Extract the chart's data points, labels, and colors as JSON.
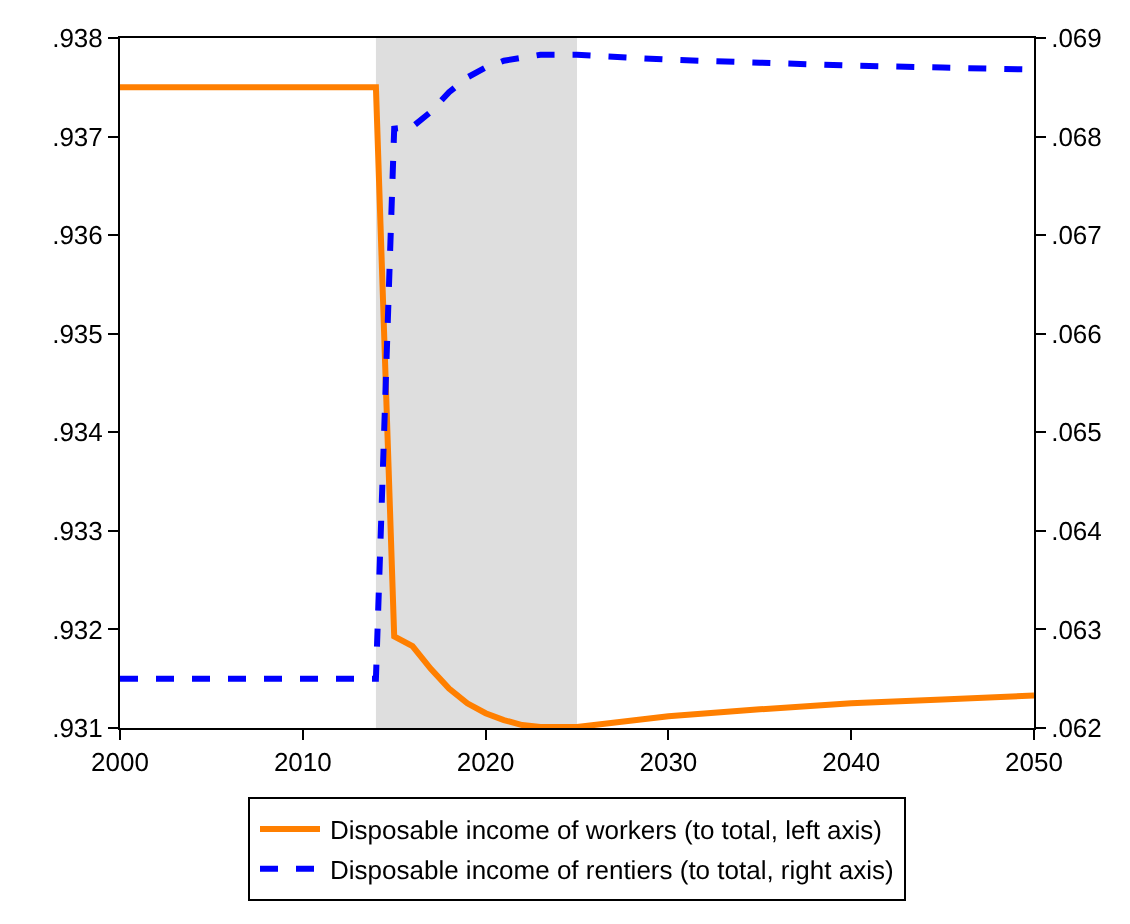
{
  "chart_data": {
    "type": "line",
    "x": [
      2000,
      2005,
      2010,
      2014,
      2015,
      2016,
      2017,
      2018,
      2019,
      2020,
      2021,
      2022,
      2023,
      2025,
      2030,
      2035,
      2040,
      2045,
      2050
    ],
    "series": [
      {
        "name": "Disposable income of workers (to total, left axis)",
        "color": "#ff7f00",
        "line_style": "solid",
        "values": [
          0.9375,
          0.9375,
          0.9375,
          0.9375,
          0.93193,
          0.93183,
          0.9316,
          0.9314,
          0.93125,
          0.93115,
          0.93108,
          0.93103,
          0.93101,
          0.93101,
          0.93112,
          0.93119,
          0.93125,
          0.93129,
          0.93133
        ]
      },
      {
        "name": "Disposable income of rentiers (to total, right axis)",
        "color": "#0000ff",
        "line_style": "dashed",
        "axis": "y2",
        "values": [
          0.0625,
          0.0625,
          0.0625,
          0.0625,
          0.06808,
          0.0681,
          0.06825,
          0.06845,
          0.0686,
          0.0687,
          0.06877,
          0.0688,
          0.06883,
          0.06883,
          0.06878,
          0.06875,
          0.06872,
          0.0687,
          0.06868
        ]
      }
    ],
    "xlim": [
      2000,
      2050
    ],
    "xticks": [
      2000,
      2010,
      2020,
      2030,
      2040,
      2050
    ],
    "ylim": [
      0.931,
      0.938
    ],
    "yticks": [
      {
        "value": 0.931,
        "label": ".931"
      },
      {
        "value": 0.932,
        "label": ".932"
      },
      {
        "value": 0.933,
        "label": ".933"
      },
      {
        "value": 0.934,
        "label": ".934"
      },
      {
        "value": 0.935,
        "label": ".935"
      },
      {
        "value": 0.936,
        "label": ".936"
      },
      {
        "value": 0.937,
        "label": ".937"
      },
      {
        "value": 0.938,
        "label": ".938"
      }
    ],
    "y2lim": [
      0.062,
      0.069
    ],
    "y2ticks": [
      {
        "value": 0.062,
        "label": ".062"
      },
      {
        "value": 0.063,
        "label": ".063"
      },
      {
        "value": 0.064,
        "label": ".064"
      },
      {
        "value": 0.065,
        "label": ".065"
      },
      {
        "value": 0.066,
        "label": ".066"
      },
      {
        "value": 0.067,
        "label": ".067"
      },
      {
        "value": 0.068,
        "label": ".068"
      },
      {
        "value": 0.069,
        "label": ".069"
      }
    ],
    "bands": [
      {
        "axis": "x",
        "from": 2014,
        "to": 2025,
        "color": "#dedede"
      }
    ],
    "grid": false,
    "legend": "bottom"
  }
}
